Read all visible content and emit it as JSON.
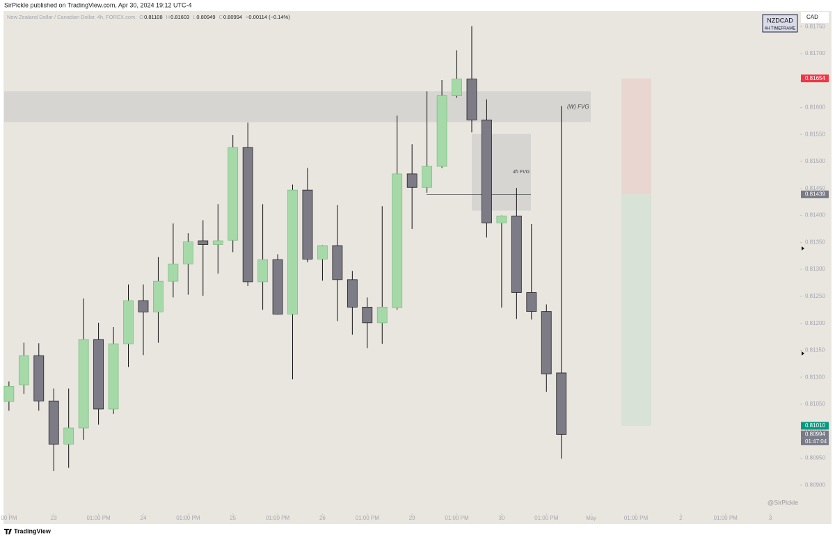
{
  "header": {
    "published": "SirPickle published on TradingView.com, Apr 30, 2024 19:12 UTC-4"
  },
  "footer": {
    "brand": "TradingView"
  },
  "chart_data": {
    "type": "candlestick",
    "description": "New Zealand Dollar / Canadian Dollar, 4h, FOREX.com",
    "ohlc_legend": [
      {
        "key": "O",
        "value": "0.81108"
      },
      {
        "key": "H",
        "value": "0.81603"
      },
      {
        "key": "L",
        "value": "0.80949"
      },
      {
        "key": "C",
        "value": "0.80994"
      }
    ],
    "change": "−0.00114 (−0.14%)",
    "symbol": "NZDCAD",
    "timeframe": "4H TIMEFRAME",
    "currency": "CAD",
    "watermark": "@SirPickle",
    "up_color": "#a5d9a8",
    "down_color": "#7c7b86",
    "open": [
      0.81055,
      0.81086,
      0.8114,
      0.81056,
      0.80976,
      0.81006,
      0.8117,
      0.81041,
      0.81162,
      0.81242,
      0.81221,
      0.81278,
      0.8131,
      0.81353,
      0.81346,
      0.81354,
      0.81526,
      0.81277,
      0.81318,
      0.81217,
      0.81447,
      0.81319,
      0.81344,
      0.81281,
      0.8123,
      0.81201,
      0.81229,
      0.81477,
      0.81452,
      0.81491,
      0.81622,
      0.81653,
      0.81577,
      0.81386,
      0.81399,
      0.81257,
      0.81222,
      0.81108
    ],
    "high": [
      0.81092,
      0.81164,
      0.81163,
      0.81079,
      0.81079,
      0.81246,
      0.81201,
      0.81193,
      0.81272,
      0.81272,
      0.81323,
      0.81385,
      0.81367,
      0.81391,
      0.81421,
      0.81549,
      0.81572,
      0.81421,
      0.81328,
      0.81457,
      0.81488,
      0.81345,
      0.81419,
      0.81297,
      0.81248,
      0.81417,
      0.81585,
      0.81532,
      0.8163,
      0.81651,
      0.81706,
      0.81751,
      0.81615,
      0.814,
      0.81451,
      0.81384,
      0.81235,
      0.81603
    ],
    "low": [
      0.81038,
      0.81069,
      0.81038,
      0.80926,
      0.80932,
      0.80984,
      0.81012,
      0.81032,
      0.81119,
      0.81141,
      0.81164,
      0.81248,
      0.81253,
      0.81251,
      0.81292,
      0.81332,
      0.81269,
      0.81225,
      0.81216,
      0.81096,
      0.81313,
      0.81279,
      0.81204,
      0.81179,
      0.81154,
      0.81162,
      0.81225,
      0.81375,
      0.81442,
      0.81488,
      0.81618,
      0.81554,
      0.81359,
      0.81229,
      0.81208,
      0.81207,
      0.81073,
      0.80949
    ],
    "close": [
      0.81083,
      0.8114,
      0.81056,
      0.80976,
      0.81006,
      0.8117,
      0.81041,
      0.81162,
      0.81242,
      0.81221,
      0.81278,
      0.8131,
      0.81351,
      0.81346,
      0.81353,
      0.81526,
      0.81277,
      0.81318,
      0.81217,
      0.81447,
      0.81319,
      0.81344,
      0.81281,
      0.8123,
      0.81201,
      0.8123,
      0.81477,
      0.81452,
      0.81491,
      0.81622,
      0.81653,
      0.81577,
      0.81386,
      0.81399,
      0.81257,
      0.81222,
      0.81106,
      0.80994
    ],
    "ylim": [
      0.8085,
      0.8178
    ],
    "xlim": [
      -0.6,
      53
    ],
    "yticks": [
      {
        "value": 0.8175,
        "label": "0.81750"
      },
      {
        "value": 0.817,
        "label": "0.81700"
      },
      {
        "value": 0.8165,
        "label": "0.81650"
      },
      {
        "value": 0.816,
        "label": "0.81600"
      },
      {
        "value": 0.8155,
        "label": "0.81550"
      },
      {
        "value": 0.815,
        "label": "0.81500"
      },
      {
        "value": 0.8145,
        "label": "0.81450"
      },
      {
        "value": 0.814,
        "label": "0.81400"
      },
      {
        "value": 0.8135,
        "label": "0.81350"
      },
      {
        "value": 0.813,
        "label": "0.81300"
      },
      {
        "value": 0.8125,
        "label": "0.81250"
      },
      {
        "value": 0.812,
        "label": "0.81200"
      },
      {
        "value": 0.8115,
        "label": "0.81150"
      },
      {
        "value": 0.811,
        "label": "0.81100"
      },
      {
        "value": 0.8105,
        "label": "0.81050"
      },
      {
        "value": 0.81,
        "label": "0.81000"
      },
      {
        "value": 0.8095,
        "label": "0.80950"
      },
      {
        "value": 0.809,
        "label": "0.80900"
      }
    ],
    "xticks": [
      {
        "value": 0,
        "label": "00 PM"
      },
      {
        "value": 3,
        "label": "23"
      },
      {
        "value": 6,
        "label": "01:00 PM"
      },
      {
        "value": 9,
        "label": "24"
      },
      {
        "value": 12,
        "label": "01:00 PM"
      },
      {
        "value": 15,
        "label": "25"
      },
      {
        "value": 18,
        "label": "01:00 PM"
      },
      {
        "value": 21,
        "label": "26"
      },
      {
        "value": 24,
        "label": "01:00 PM"
      },
      {
        "value": 27,
        "label": "29"
      },
      {
        "value": 30,
        "label": "01:00 PM"
      },
      {
        "value": 33,
        "label": "30"
      },
      {
        "value": 36,
        "label": "01:00 PM"
      },
      {
        "value": 39,
        "label": "May"
      },
      {
        "value": 42,
        "label": "01:00 PM"
      },
      {
        "value": 45,
        "label": "2"
      },
      {
        "value": 48,
        "label": "01:00 PM"
      },
      {
        "value": 51,
        "label": "3"
      }
    ],
    "price_labels": [
      {
        "value": 0.81654,
        "label": "0.81654",
        "color": "#f23645"
      },
      {
        "value": 0.81439,
        "label": "0.81439",
        "color": "#787b86"
      },
      {
        "value": 0.8101,
        "label": "0.81010",
        "color": "#089981"
      },
      {
        "value": 0.80994,
        "label": "0.80994",
        "color": "#787b86"
      }
    ],
    "countdown": "01:47:04",
    "zones": [
      {
        "label": "(W) FVG",
        "top": 0.8163,
        "bottom": 0.81573
      },
      {
        "label": "4h FVG",
        "top": 0.81551,
        "bottom": 0.81409
      }
    ]
  }
}
